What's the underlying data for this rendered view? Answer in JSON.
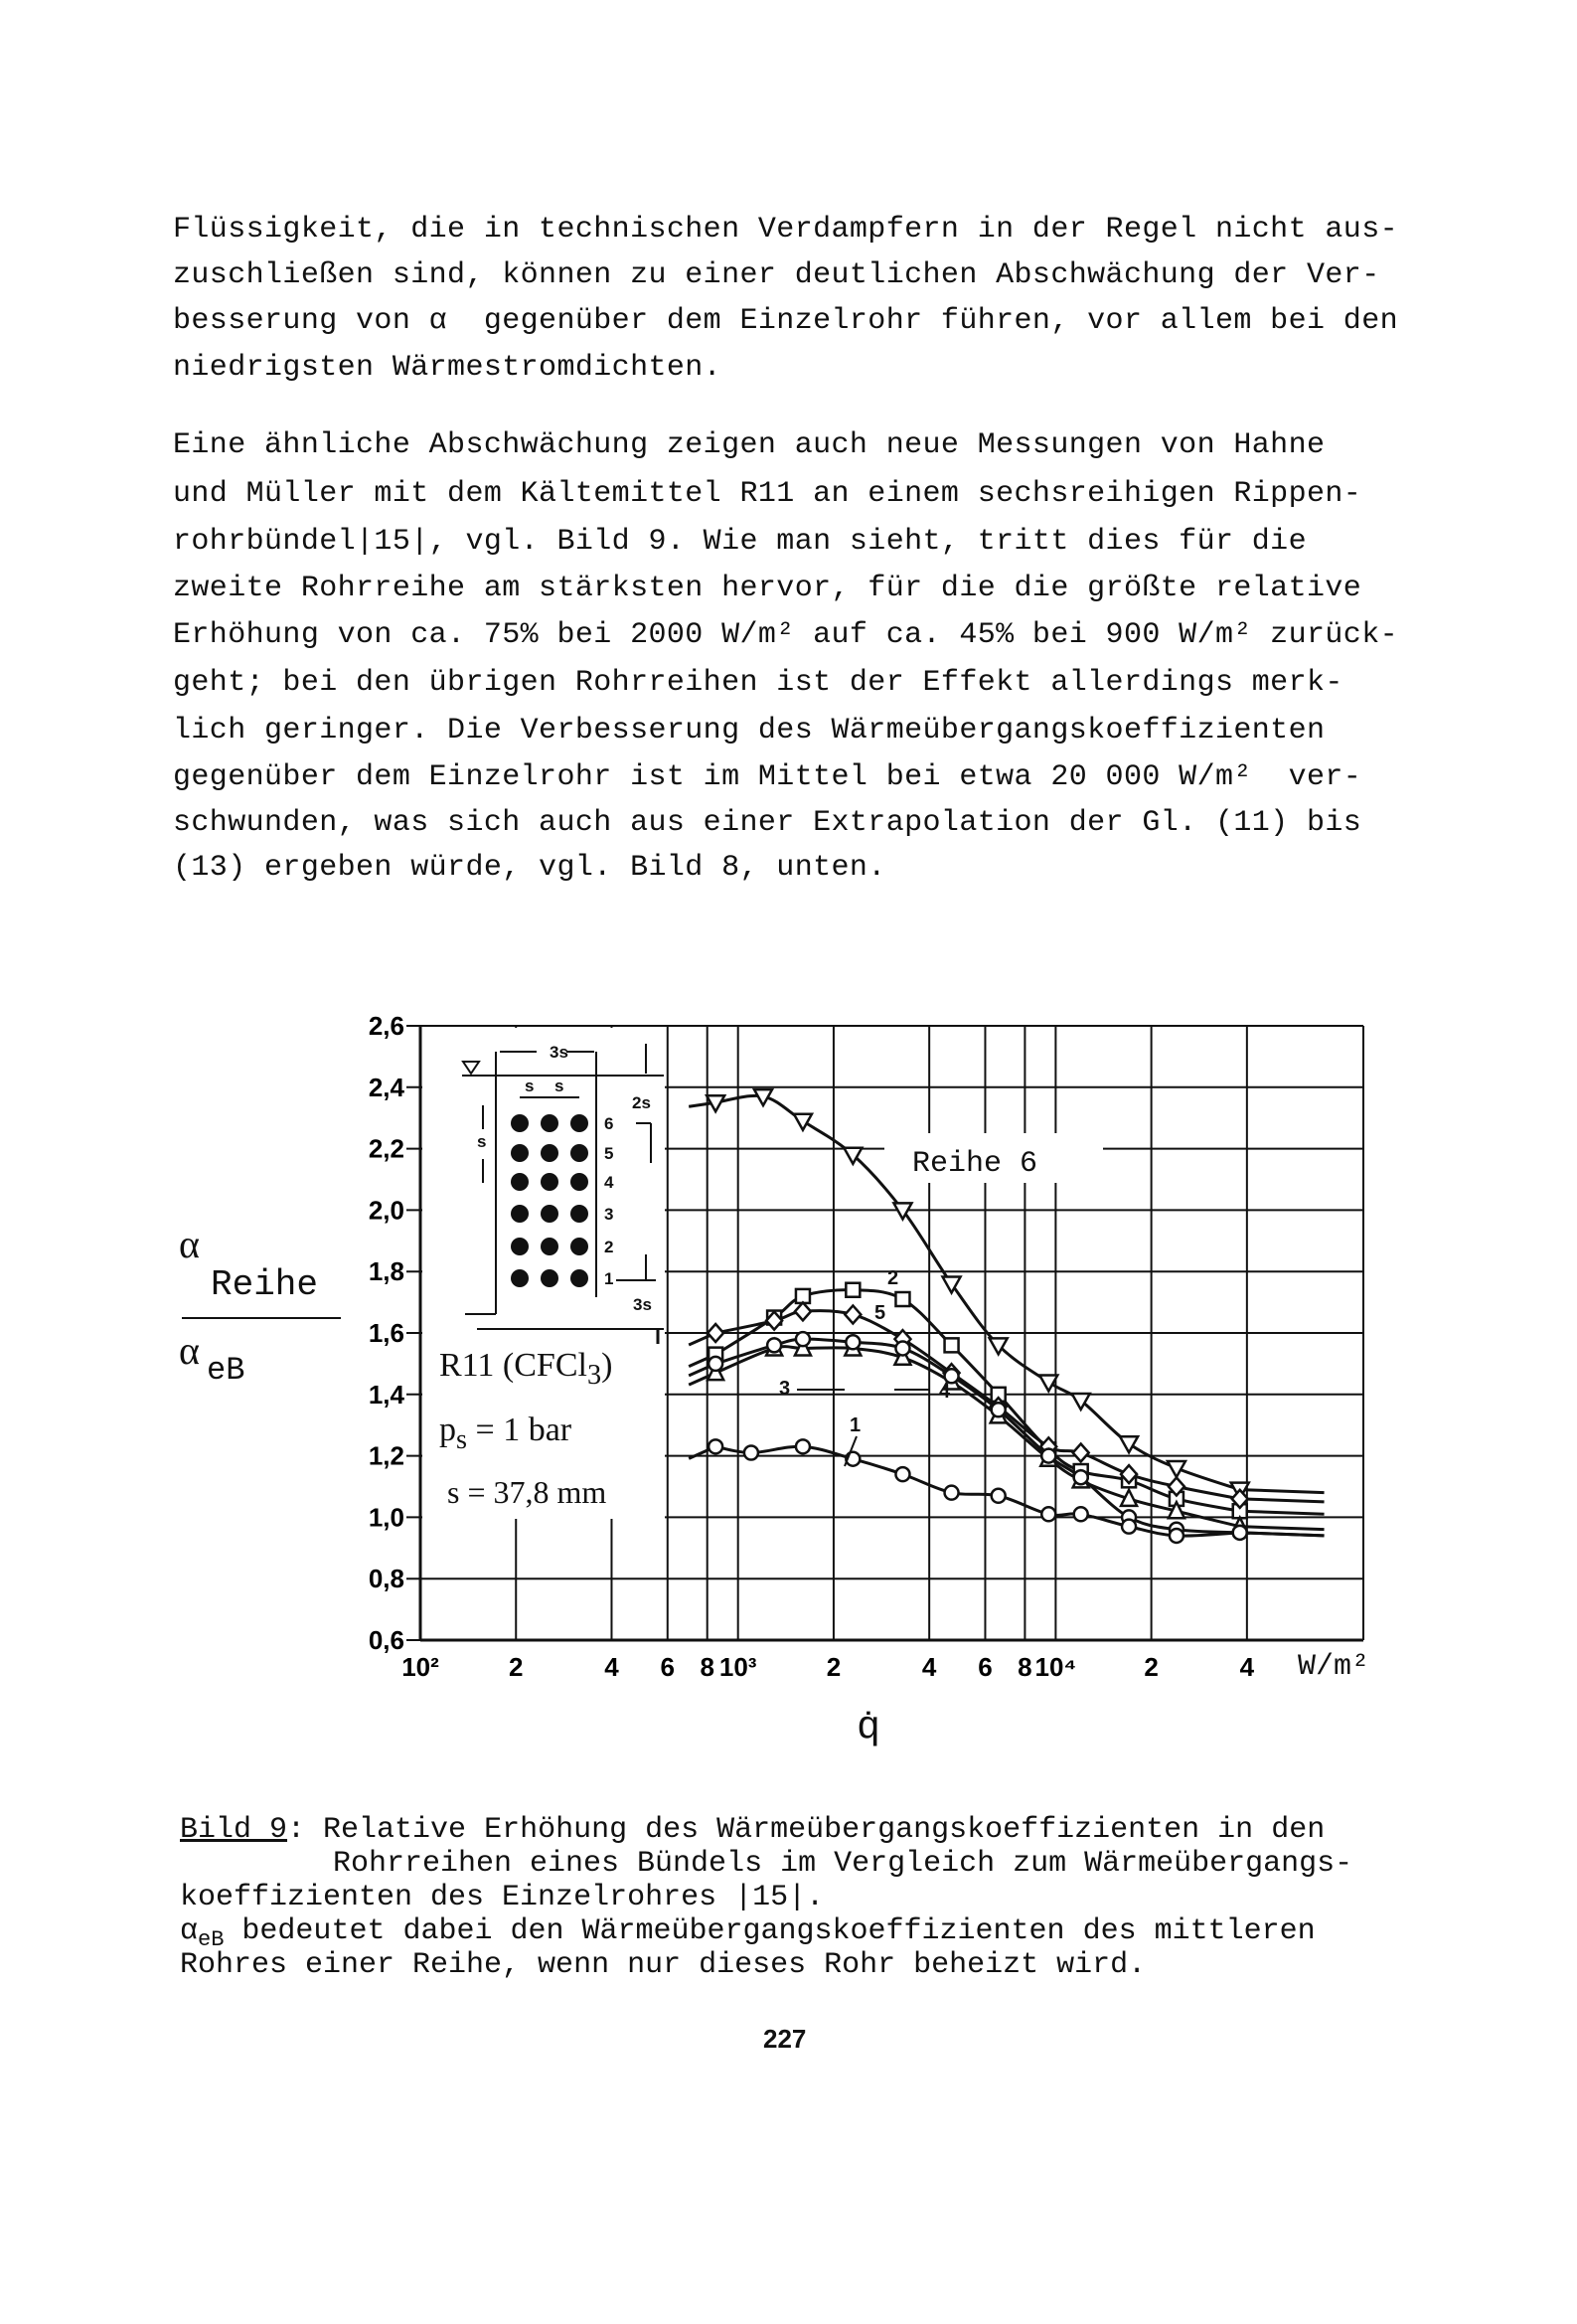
{
  "body": {
    "paragraph1": [
      "Flüssigkeit, die in technischen Verdampfern in der Regel nicht aus-",
      "zuschließen sind, können zu einer deutlichen Abschwächung der Ver-",
      "besserung von α  gegenüber dem Einzelrohr führen, vor allem bei den",
      "niedrigsten Wärmestromdichten."
    ],
    "paragraph2": [
      "Eine ähnliche Abschwächung zeigen auch neue Messungen von Hahne",
      "und Müller mit dem Kältemittel R11 an einem sechsreihigen Rippen-",
      "rohrbündel|15|, vgl. Bild 9. Wie man sieht, tritt dies für die",
      "zweite Rohrreihe am stärksten hervor, für die die größte relative",
      "Erhöhung von ca. 75% bei 2000 W/m² auf ca. 45% bei 900 W/m² zurück-",
      "geht; bei den übrigen Rohrreihen ist der Effekt allerdings merk-",
      "lich geringer. Die Verbesserung des Wärmeübergangskoeffizienten",
      "gegenüber dem Einzelrohr ist im Mittel bei etwa 20 000 W/m²  ver-",
      "schwunden, was sich auch aus einer Extrapolation der Gl. (11) bis",
      "(13) ergeben würde, vgl. Bild 8, unten."
    ]
  },
  "chart_data": {
    "type": "line",
    "xscale": "log",
    "xlim": [
      100,
      93000
    ],
    "ylim": [
      0.6,
      2.6
    ],
    "grid": true,
    "xlabel": "q̇",
    "xunit": "W/m²",
    "ylabel": {
      "num_symbol": "α",
      "num_sub": "Reihe",
      "den_symbol": "α",
      "den_sub": "eB"
    },
    "xticks": [
      {
        "v": 100,
        "label": "10²"
      },
      {
        "v": 200,
        "label": "2"
      },
      {
        "v": 400,
        "label": "4"
      },
      {
        "v": 600,
        "label": "6"
      },
      {
        "v": 800,
        "label": "8"
      },
      {
        "v": 1000,
        "label": "10³"
      },
      {
        "v": 2000,
        "label": "2"
      },
      {
        "v": 4000,
        "label": "4"
      },
      {
        "v": 6000,
        "label": "6"
      },
      {
        "v": 8000,
        "label": "8"
      },
      {
        "v": 10000,
        "label": "10⁴"
      },
      {
        "v": 20000,
        "label": "2"
      },
      {
        "v": 40000,
        "label": "4"
      }
    ],
    "yticks": [
      {
        "v": 2.6,
        "label": "2,6"
      },
      {
        "v": 2.4,
        "label": "2,4"
      },
      {
        "v": 2.2,
        "label": "2,2"
      },
      {
        "v": 2.0,
        "label": "2,0"
      },
      {
        "v": 1.8,
        "label": "1,8"
      },
      {
        "v": 1.6,
        "label": "1,6"
      },
      {
        "v": 1.4,
        "label": "1,4"
      },
      {
        "v": 1.2,
        "label": "1,2"
      },
      {
        "v": 1.0,
        "label": "1,0"
      },
      {
        "v": 0.8,
        "label": "0,8"
      },
      {
        "v": 0.6,
        "label": "0,6"
      }
    ],
    "series": [
      {
        "name": "Reihe 6",
        "marker": "triangle-down",
        "x": [
          850,
          1200,
          1600,
          2300,
          3300,
          4700,
          6600,
          9500,
          12000,
          17000,
          24000,
          38000
        ],
        "y": [
          2.35,
          2.37,
          2.29,
          2.18,
          2.0,
          1.76,
          1.56,
          1.44,
          1.38,
          1.24,
          1.16,
          1.09
        ]
      },
      {
        "name": "2",
        "marker": "square",
        "x": [
          850,
          1300,
          1600,
          2300,
          3300,
          4700,
          6600,
          9500,
          12000,
          17000,
          24000,
          38000
        ],
        "y": [
          1.53,
          1.65,
          1.72,
          1.74,
          1.71,
          1.56,
          1.4,
          1.22,
          1.15,
          1.12,
          1.06,
          1.02
        ]
      },
      {
        "name": "5",
        "marker": "diamond",
        "x": [
          850,
          1300,
          1600,
          2300,
          3300,
          4700,
          6600,
          9500,
          12000,
          17000,
          24000,
          38000
        ],
        "y": [
          1.6,
          1.64,
          1.67,
          1.66,
          1.58,
          1.47,
          1.36,
          1.23,
          1.21,
          1.14,
          1.1,
          1.06
        ]
      },
      {
        "name": "3",
        "marker": "triangle-up",
        "x": [
          850,
          1300,
          1600,
          2300,
          3300,
          4700,
          6600,
          9500,
          12000,
          17000,
          24000,
          38000
        ],
        "y": [
          1.47,
          1.55,
          1.55,
          1.55,
          1.52,
          1.44,
          1.33,
          1.19,
          1.12,
          1.06,
          1.02,
          0.97
        ]
      },
      {
        "name": "4",
        "marker": "circle",
        "x": [
          850,
          1300,
          1600,
          2300,
          3300,
          4700,
          6600,
          9500,
          12000,
          17000,
          24000,
          38000
        ],
        "y": [
          1.5,
          1.56,
          1.58,
          1.57,
          1.55,
          1.46,
          1.35,
          1.2,
          1.13,
          1.0,
          0.96,
          0.95
        ]
      },
      {
        "name": "1",
        "marker": "circle",
        "x": [
          850,
          1100,
          1600,
          2300,
          3300,
          4700,
          6600,
          9500,
          12000,
          17000,
          24000,
          38000
        ],
        "y": [
          1.23,
          1.21,
          1.23,
          1.19,
          1.14,
          1.08,
          1.07,
          1.01,
          1.01,
          0.97,
          0.94,
          0.95
        ]
      }
    ],
    "legend": {
      "fluid": "R11 (CFCl",
      "fluid_sub": "3",
      "fluid_close": ")",
      "pressure_symbol": "p",
      "pressure_sub": "s",
      "pressure_value": " = 1 bar",
      "spacing": "s = 37,8 mm"
    },
    "inset": {
      "row_labels": [
        "1",
        "2",
        "3",
        "4",
        "5",
        "6"
      ],
      "dim_width": "3s",
      "dim_s1": "s",
      "dim_s2": "s",
      "dim_2s": "2s",
      "dim_left_s": "s",
      "dim_bottom": "3s"
    }
  },
  "caption": {
    "label": "Bild 9",
    "colon": ": Relative Erhöhung des Wärmeübergangskoeffizienten in den",
    "line2": "Rohrreihen eines Bündels im Vergleich zum Wärmeübergangs-",
    "line3": "koeffizienten des Einzelrohres |15|.",
    "line4_symbol": "α",
    "line4_sub": "eB",
    "line4": " bedeutet dabei den Wärmeübergangskoeffizienten des mittleren",
    "line5": "Rohres einer Reihe, wenn nur dieses Rohr beheizt wird."
  },
  "page_number": "227"
}
